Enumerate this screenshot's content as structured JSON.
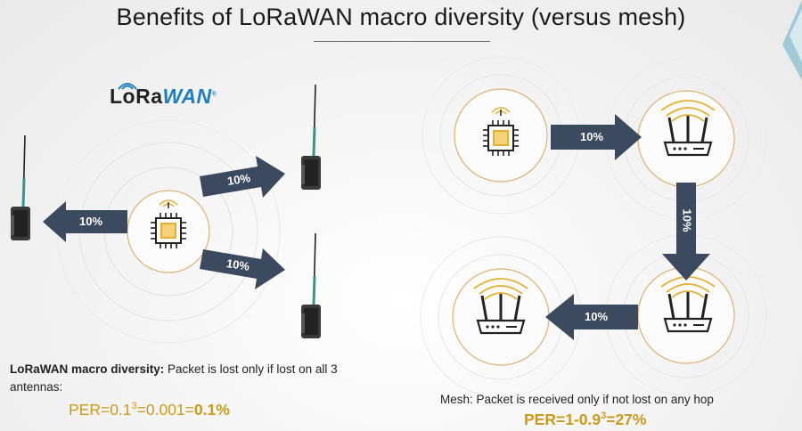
{
  "title": "Benefits of LoRaWAN macro diversity (versus mesh)",
  "logo": {
    "lora": "LoRa",
    "wan": "WAN",
    "reg": "®"
  },
  "left": {
    "arrow_labels": [
      "10%",
      "10%",
      "10%"
    ],
    "caption_bold": "LoRaWAN macro diversity:",
    "caption_rest": " Packet is lost only if lost on all 3 antennas:",
    "per_prefix": "PER=0.1",
    "per_exp": "3",
    "per_mid": "=0.001=",
    "per_result": "0.1%"
  },
  "right": {
    "arrow_labels": [
      "10%",
      "10%",
      "10%"
    ],
    "caption": "Mesh: Packet is received only if not lost on any hop",
    "per_prefix": "PER=1-0.9",
    "per_exp": "3",
    "per_result": "=27%"
  },
  "colors": {
    "arrow": "#3b4a5e",
    "accent": "#e3b030",
    "text": "#222222",
    "logo_blue": "#1f7fbf"
  }
}
